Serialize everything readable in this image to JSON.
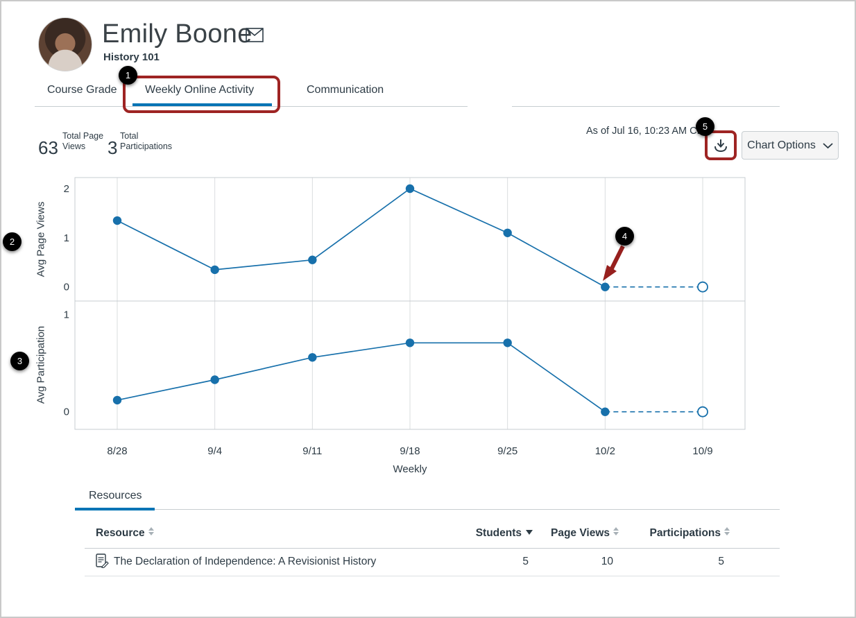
{
  "header": {
    "name": "Emily Boone",
    "course": "History 101"
  },
  "tabs": [
    {
      "label": "Course Grade",
      "active": false
    },
    {
      "label": "Weekly Online Activity",
      "active": true
    },
    {
      "label": "Communication",
      "active": false
    }
  ],
  "stats": [
    {
      "value": "63",
      "label_line1": "Total Page",
      "label_line2": "Views"
    },
    {
      "value": "3",
      "label_line1": "Total",
      "label_line2": "Participations"
    }
  ],
  "toolbar": {
    "as_of": "As of Jul 16, 10:23 AM CDT",
    "chart_options_label": "Chart Options"
  },
  "annotations": {
    "badges": [
      "1",
      "2",
      "3",
      "4",
      "5"
    ],
    "box_color": "#9E2423",
    "arrow_color": "#97201E"
  },
  "chart_data": {
    "type": "line",
    "categories": [
      "8/28",
      "9/4",
      "9/11",
      "9/18",
      "9/25",
      "10/2",
      "10/9"
    ],
    "xlabel": "Weekly",
    "line_color": "#1770AB",
    "grid": true,
    "forecast_from_index": 5,
    "series": [
      {
        "name": "Avg Page Views",
        "values": [
          1.35,
          0.35,
          0.55,
          2,
          1.1,
          0,
          0
        ],
        "ylim": [
          0,
          2
        ],
        "yticks": [
          0,
          1,
          2
        ]
      },
      {
        "name": "Avg Participation",
        "values": [
          0.12,
          0.33,
          0.56,
          0.71,
          0.71,
          0,
          0
        ],
        "ylim": [
          0,
          1
        ],
        "yticks": [
          0,
          1
        ]
      }
    ]
  },
  "resources": {
    "tab_label": "Resources",
    "columns": [
      {
        "label": "Resource",
        "sort_state": "none"
      },
      {
        "label": "Students",
        "sort_state": "desc"
      },
      {
        "label": "Page Views",
        "sort_state": "none"
      },
      {
        "label": "Participations",
        "sort_state": "none"
      }
    ],
    "rows": [
      {
        "title": "The Declaration of Independence: A Revisionist History",
        "students": "5",
        "page_views": "10",
        "participations": "5"
      }
    ]
  }
}
